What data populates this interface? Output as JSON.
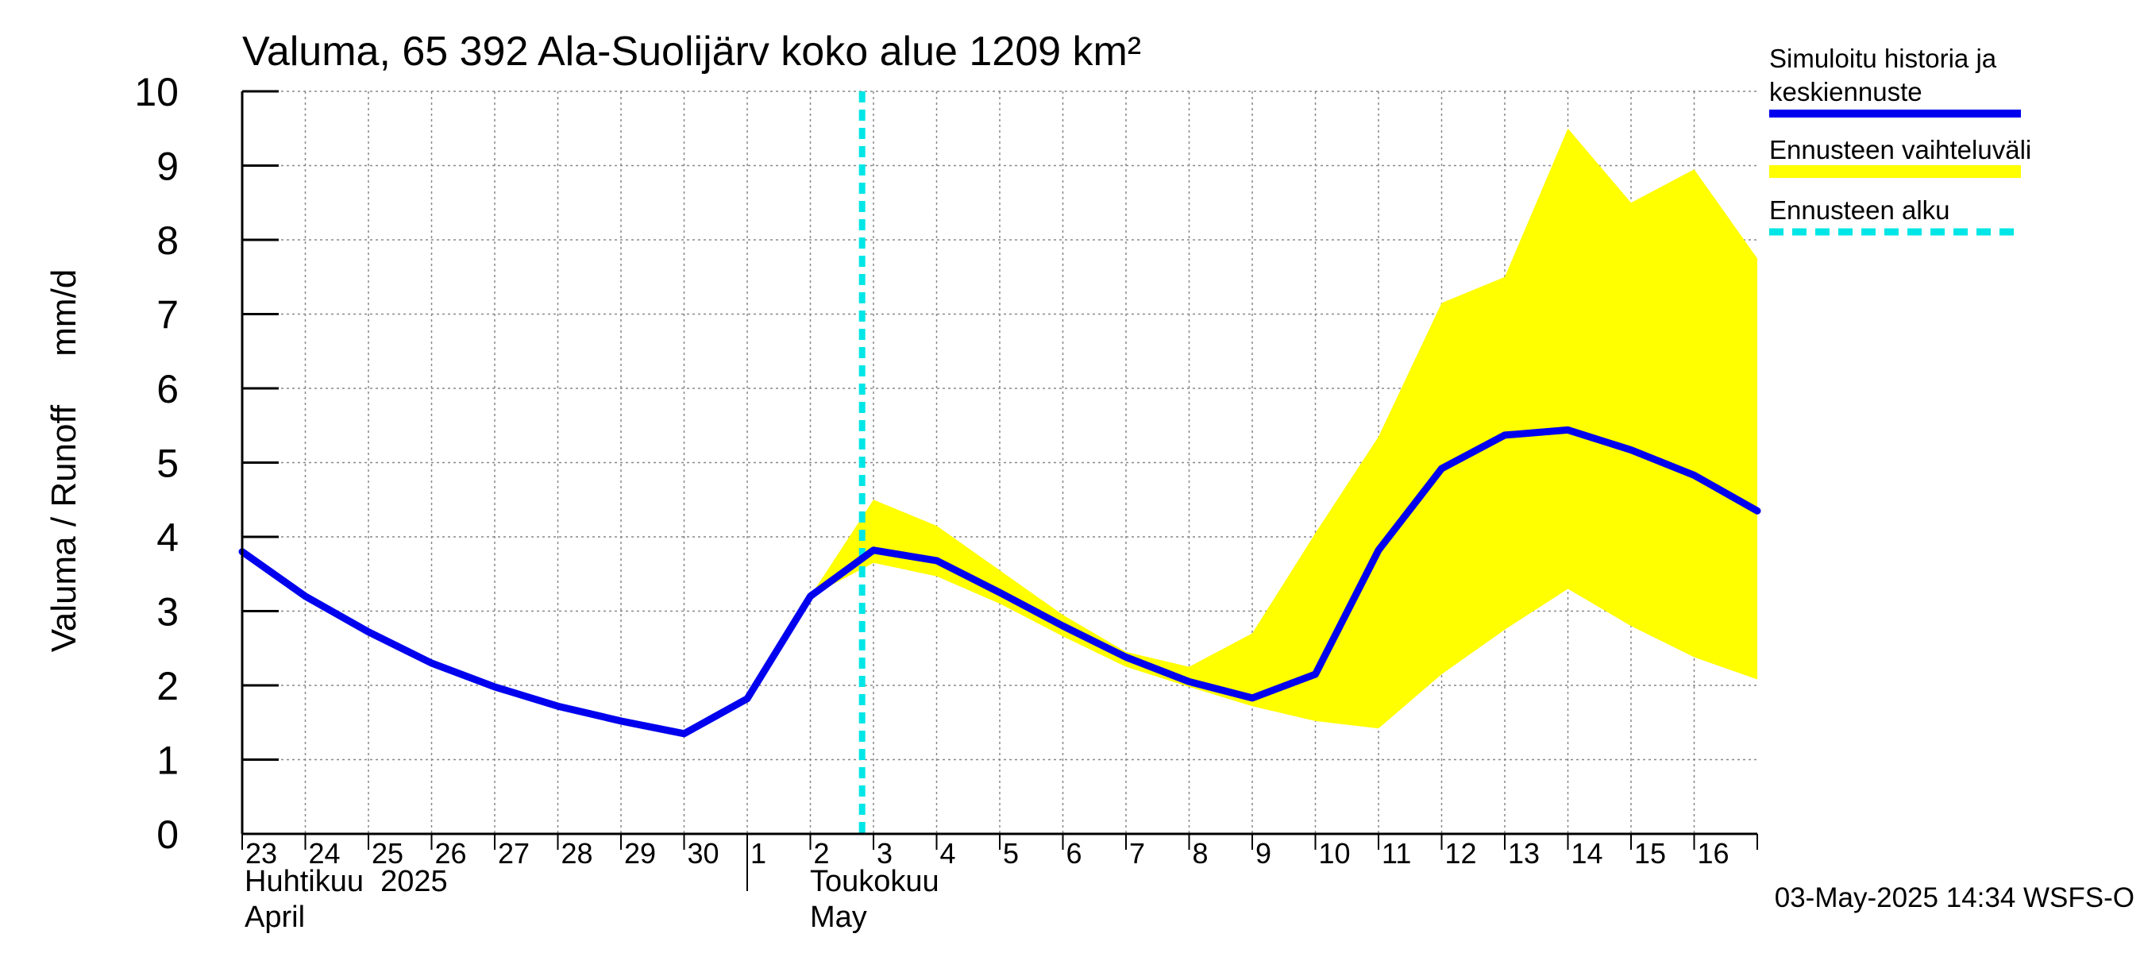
{
  "chart_data": {
    "type": "line",
    "title": "Valuma, 65 392 Ala-Suolijärv koko alue 1209 km²",
    "ylabel": "Valuma / Runoff     mm/d",
    "ylim": [
      0,
      10
    ],
    "yticks": [
      "0",
      "1",
      "2",
      "3",
      "4",
      "5",
      "6",
      "7",
      "8",
      "9",
      "10"
    ],
    "grid": true,
    "legend_position": "right",
    "x_tick_labels": [
      "23",
      "24",
      "25",
      "26",
      "27",
      "28",
      "29",
      "30",
      "1",
      "2",
      "3",
      "4",
      "5",
      "6",
      "7",
      "8",
      "9",
      "10",
      "11",
      "12",
      "13",
      "14",
      "15",
      "16"
    ],
    "month_labels": [
      {
        "line1": "Huhtikuu  2025",
        "line2": "April"
      },
      {
        "line1": "Toukokuu",
        "line2": "May"
      }
    ],
    "forecast_start_day_index": 10,
    "series": [
      {
        "name": "Simuloitu historia ja keskiennuste",
        "color": "#0000ee",
        "values": [
          3.8,
          3.2,
          2.72,
          2.3,
          1.98,
          1.72,
          1.52,
          1.35,
          1.82,
          3.2,
          3.82,
          3.68,
          3.25,
          2.8,
          2.38,
          2.05,
          1.83,
          2.15,
          3.82,
          4.92,
          5.37,
          5.44,
          5.17,
          4.83,
          4.35
        ]
      }
    ],
    "range_band": {
      "name": "Ennusteen vaihteluväli",
      "color": "#ffff00",
      "start_index": 9,
      "upper": [
        3.2,
        4.5,
        4.15,
        3.55,
        2.95,
        2.45,
        2.25,
        2.7,
        4.05,
        5.35,
        7.15,
        7.5,
        9.5,
        8.5,
        8.95,
        7.75
      ],
      "lower": [
        3.2,
        3.65,
        3.47,
        3.1,
        2.66,
        2.25,
        1.98,
        1.72,
        1.52,
        1.42,
        2.15,
        2.75,
        3.3,
        2.8,
        2.38,
        2.08
      ]
    },
    "forecast_line": {
      "name": "Ennusteen alku",
      "color": "#00e5e5"
    }
  },
  "legend": {
    "items": [
      {
        "line1": "Simuloitu historia ja",
        "line2": "keskiennuste",
        "color": "#0000ee",
        "style": "solid"
      },
      {
        "line1": "Ennusteen vaihteluväli",
        "line2": "",
        "color": "#ffff00",
        "style": "solid"
      },
      {
        "line1": "Ennusteen alku",
        "line2": "",
        "color": "#00e5e5",
        "style": "dashed"
      }
    ]
  },
  "footer": {
    "timestamp": "03-May-2025 14:34 WSFS-O"
  }
}
